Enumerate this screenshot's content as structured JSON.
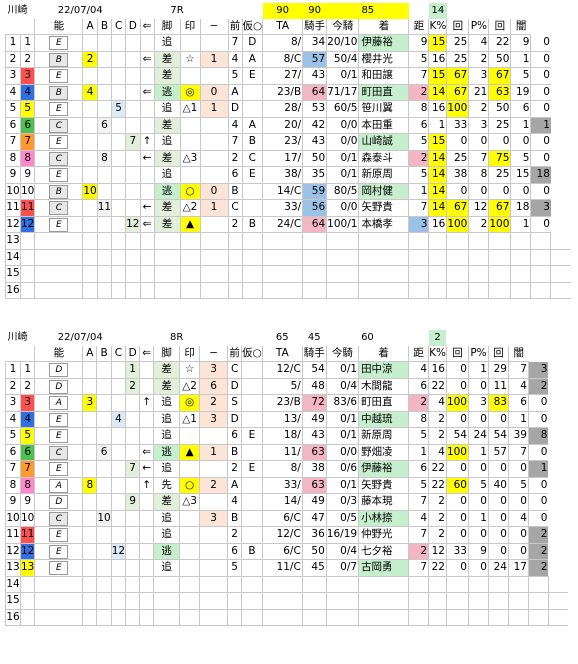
{
  "race7": {
    "track": "川崎",
    "date": "22/07/04",
    "race_no": "7R",
    "top_values": [
      "90",
      "90",
      "85"
    ],
    "dist_top": "14",
    "headers": [
      "能",
      "A",
      "B",
      "C",
      "D",
      "⇐",
      "脚",
      "印",
      "−",
      "前",
      "仮○",
      "TA",
      "騎手",
      "今騎",
      "着",
      "距",
      "K%",
      "回",
      "P%",
      "回",
      "闇"
    ],
    "rows": [
      {
        "n1": "1",
        "n2": "1",
        "rank": "E",
        "a": "",
        "b": "",
        "c": "",
        "d": "",
        "arrow": "",
        "kyaku": "追",
        "mark": "",
        "markno": "",
        "waku": "7",
        "mae": "D",
        "ninki": "8/",
        "ta": "34",
        "kishu": "20/10",
        "ima": "伊藤裕",
        "chaku": "9",
        "kyori": "15",
        "k": "25",
        "k_kai": "4",
        "p": "22",
        "p_kai": "9",
        "yami": "0"
      },
      {
        "n1": "2",
        "n2": "2",
        "rank": "B",
        "a": "2",
        "b": "",
        "c": "",
        "d": "",
        "arrow": "⇐",
        "kyaku": "差",
        "mark": "☆",
        "markno": "1",
        "waku": "4",
        "mae": "A",
        "ninki": "8/C",
        "ta": "57",
        "kishu": "50/4",
        "ima": "櫻井光",
        "chaku": "5",
        "kyori": "16",
        "k": "25",
        "k_kai": "2",
        "p": "50",
        "p_kai": "1",
        "yami": "0"
      },
      {
        "n1": "3",
        "n2": "3",
        "rank": "E",
        "a": "",
        "b": "",
        "c": "",
        "d": "",
        "arrow": "",
        "kyaku": "差",
        "mark": "",
        "markno": "",
        "waku": "5",
        "mae": "E",
        "ninki": "27/",
        "ta": "43",
        "kishu": "0/1",
        "ima": "和田譲",
        "chaku": "7",
        "kyori": "15",
        "k": "67",
        "k_kai": "3",
        "p": "67",
        "p_kai": "5",
        "yami": "0"
      },
      {
        "n1": "4",
        "n2": "4",
        "rank": "B",
        "a": "4",
        "b": "",
        "c": "",
        "d": "",
        "arrow": "⇐",
        "kyaku": "逃",
        "mark": "◎",
        "markno": "0",
        "waku": "A",
        "mae": "",
        "ninki": "23/B",
        "ta": "64",
        "kishu": "71/17",
        "ima": "町田直",
        "chaku": "2",
        "kyori": "14",
        "k": "67",
        "k_kai": "21",
        "p": "63",
        "p_kai": "19",
        "yami": "0"
      },
      {
        "n1": "5",
        "n2": "5",
        "rank": "E",
        "a": "",
        "b": "",
        "c": "5",
        "d": "",
        "arrow": "",
        "kyaku": "追",
        "mark": "△1",
        "markno": "1",
        "waku": "D",
        "mae": "",
        "ninki": "28/",
        "ta": "53",
        "kishu": "60/5",
        "ima": "笹川翼",
        "chaku": "8",
        "kyori": "16",
        "k": "100",
        "k_kai": "2",
        "p": "50",
        "p_kai": "6",
        "yami": "0"
      },
      {
        "n1": "6",
        "n2": "6",
        "rank": "C",
        "a": "",
        "b": "6",
        "c": "",
        "d": "",
        "arrow": "",
        "kyaku": "差",
        "mark": "",
        "markno": "",
        "waku": "4",
        "mae": "A",
        "ninki": "20/",
        "ta": "42",
        "kishu": "0/0",
        "ima": "本田重",
        "chaku": "6",
        "kyori": "1",
        "k": "33",
        "k_kai": "3",
        "p": "25",
        "p_kai": "1",
        "yami": "1"
      },
      {
        "n1": "7",
        "n2": "7",
        "rank": "E",
        "a": "",
        "b": "",
        "c": "",
        "d": "7",
        "arrow": "↑",
        "kyaku": "追",
        "mark": "",
        "markno": "",
        "waku": "7",
        "mae": "B",
        "ninki": "23/",
        "ta": "43",
        "kishu": "0/0",
        "ima": "山崎誠",
        "chaku": "5",
        "kyori": "15",
        "k": "0",
        "k_kai": "0",
        "p": "0",
        "p_kai": "0",
        "yami": "0"
      },
      {
        "n1": "8",
        "n2": "8",
        "rank": "C",
        "a": "",
        "b": "8",
        "c": "",
        "d": "",
        "arrow": "←",
        "kyaku": "差",
        "mark": "△3",
        "markno": "",
        "waku": "2",
        "mae": "C",
        "ninki": "17/",
        "ta": "50",
        "kishu": "0/1",
        "ima": "森泰斗",
        "chaku": "2",
        "kyori": "14",
        "k": "25",
        "k_kai": "7",
        "p": "75",
        "p_kai": "5",
        "yami": "0"
      },
      {
        "n1": "9",
        "n2": "9",
        "rank": "E",
        "a": "",
        "b": "",
        "c": "",
        "d": "",
        "arrow": "",
        "kyaku": "追",
        "mark": "",
        "markno": "",
        "waku": "6",
        "mae": "E",
        "ninki": "38/",
        "ta": "35",
        "kishu": "0/1",
        "ima": "新原周",
        "chaku": "5",
        "kyori": "14",
        "k": "38",
        "k_kai": "8",
        "p": "25",
        "p_kai": "15",
        "yami": "18"
      },
      {
        "n1": "10",
        "n2": "10",
        "rank": "B",
        "a": "10",
        "b": "",
        "c": "",
        "d": "",
        "arrow": "",
        "kyaku": "逃",
        "mark": "○",
        "markno": "0",
        "waku": "B",
        "mae": "",
        "ninki": "14/C",
        "ta": "59",
        "kishu": "80/5",
        "ima": "岡村健",
        "chaku": "1",
        "kyori": "14",
        "k": "0",
        "k_kai": "0",
        "p": "0",
        "p_kai": "0",
        "yami": "0"
      },
      {
        "n1": "11",
        "n2": "11",
        "rank": "C",
        "a": "",
        "b": "11",
        "c": "",
        "d": "",
        "arrow": "←",
        "kyaku": "差",
        "mark": "△2",
        "markno": "1",
        "waku": "C",
        "mae": "",
        "ninki": "33/",
        "ta": "56",
        "kishu": "0/0",
        "ima": "矢野貴",
        "chaku": "7",
        "kyori": "14",
        "k": "67",
        "k_kai": "12",
        "p": "67",
        "p_kai": "18",
        "yami": "3"
      },
      {
        "n1": "12",
        "n2": "12",
        "rank": "E",
        "a": "",
        "b": "",
        "c": "",
        "d": "12",
        "arrow": "⇐",
        "kyaku": "差",
        "mark": "▲",
        "markno": "",
        "waku": "2",
        "mae": "B",
        "ninki": "24/C",
        "ta": "64",
        "kishu": "100/1",
        "ima": "本橋孝",
        "chaku": "3",
        "kyori": "16",
        "k": "100",
        "k_kai": "2",
        "p": "100",
        "p_kai": "1",
        "yami": "0"
      },
      {
        "n1": "13",
        "n2": ""
      },
      {
        "n1": "14",
        "n2": ""
      },
      {
        "n1": "15",
        "n2": ""
      },
      {
        "n1": "16",
        "n2": ""
      }
    ]
  },
  "race8": {
    "track": "川崎",
    "date": "22/07/04",
    "race_no": "8R",
    "top_values": [
      "65",
      "45",
      "60"
    ],
    "dist_top": "2",
    "headers": [
      "能",
      "A",
      "B",
      "C",
      "D",
      "⇐",
      "脚",
      "印",
      "−",
      "前",
      "仮○",
      "TA",
      "騎手",
      "今騎",
      "着",
      "距",
      "K%",
      "回",
      "P%",
      "回",
      "闇"
    ],
    "rows": [
      {
        "n1": "1",
        "n2": "1",
        "rank": "D",
        "a": "",
        "b": "",
        "c": "",
        "d": "1",
        "arrow": "",
        "kyaku": "差",
        "mark": "☆",
        "markno": "3",
        "waku": "C",
        "mae": "",
        "ninki": "12/C",
        "ta": "54",
        "kishu": "0/1",
        "ima": "田中涼",
        "chaku": "4",
        "kyori": "16",
        "k": "0",
        "k_kai": "1",
        "p": "29",
        "p_kai": "7",
        "yami": "3"
      },
      {
        "n1": "2",
        "n2": "2",
        "rank": "D",
        "a": "",
        "b": "",
        "c": "",
        "d": "2",
        "arrow": "",
        "kyaku": "差",
        "mark": "△2",
        "markno": "6",
        "waku": "D",
        "mae": "",
        "ninki": "5/",
        "ta": "48",
        "kishu": "0/4",
        "ima": "木間龍",
        "chaku": "6",
        "kyori": "22",
        "k": "0",
        "k_kai": "0",
        "p": "11",
        "p_kai": "4",
        "yami": "2"
      },
      {
        "n1": "3",
        "n2": "3",
        "rank": "A",
        "a": "3",
        "b": "",
        "c": "",
        "d": "",
        "arrow": "↑",
        "kyaku": "追",
        "mark": "◎",
        "markno": "2",
        "waku": "S",
        "mae": "",
        "ninki": "23/B",
        "ta": "72",
        "kishu": "83/6",
        "ima": "町田直",
        "chaku": "2",
        "kyori": "4",
        "k": "100",
        "k_kai": "3",
        "p": "83",
        "p_kai": "6",
        "yami": "0"
      },
      {
        "n1": "4",
        "n2": "4",
        "rank": "E",
        "a": "",
        "b": "",
        "c": "4",
        "d": "",
        "arrow": "",
        "kyaku": "追",
        "mark": "△1",
        "markno": "3",
        "waku": "D",
        "mae": "",
        "ninki": "13/",
        "ta": "49",
        "kishu": "0/1",
        "ima": "中越琉",
        "chaku": "8",
        "kyori": "2",
        "k": "0",
        "k_kai": "0",
        "p": "0",
        "p_kai": "1",
        "yami": "0"
      },
      {
        "n1": "5",
        "n2": "5",
        "rank": "E",
        "a": "",
        "b": "",
        "c": "",
        "d": "",
        "arrow": "",
        "kyaku": "追",
        "mark": "",
        "markno": "",
        "waku": "6",
        "mae": "E",
        "ninki": "18/",
        "ta": "43",
        "kishu": "0/1",
        "ima": "新原周",
        "chaku": "5",
        "kyori": "2",
        "k": "54",
        "k_kai": "24",
        "p": "54",
        "p_kai": "39",
        "yami": "8"
      },
      {
        "n1": "6",
        "n2": "6",
        "rank": "C",
        "a": "",
        "b": "6",
        "c": "",
        "d": "",
        "arrow": "⇐",
        "kyaku": "逃",
        "mark": "▲",
        "markno": "1",
        "waku": "B",
        "mae": "",
        "ninki": "11/",
        "ta": "63",
        "kishu": "0/0",
        "ima": "野畑凌",
        "chaku": "1",
        "kyori": "4",
        "k": "100",
        "k_kai": "1",
        "p": "57",
        "p_kai": "7",
        "yami": "0"
      },
      {
        "n1": "7",
        "n2": "7",
        "rank": "E",
        "a": "",
        "b": "",
        "c": "",
        "d": "7",
        "arrow": "←",
        "kyaku": "追",
        "mark": "",
        "markno": "",
        "waku": "2",
        "mae": "E",
        "ninki": "8/",
        "ta": "38",
        "kishu": "0/6",
        "ima": "伊藤裕",
        "chaku": "6",
        "kyori": "22",
        "k": "0",
        "k_kai": "0",
        "p": "0",
        "p_kai": "0",
        "yami": "1"
      },
      {
        "n1": "8",
        "n2": "8",
        "rank": "A",
        "a": "8",
        "b": "",
        "c": "",
        "d": "",
        "arrow": "↑",
        "kyaku": "先",
        "mark": "○",
        "markno": "2",
        "waku": "A",
        "mae": "",
        "ninki": "33/",
        "ta": "63",
        "kishu": "0/1",
        "ima": "矢野貴",
        "chaku": "5",
        "kyori": "22",
        "k": "60",
        "k_kai": "5",
        "p": "40",
        "p_kai": "5",
        "yami": "0"
      },
      {
        "n1": "9",
        "n2": "9",
        "rank": "D",
        "a": "",
        "b": "",
        "c": "",
        "d": "9",
        "arrow": "",
        "kyaku": "差",
        "mark": "△3",
        "markno": "",
        "waku": "4",
        "mae": "",
        "ninki": "14/",
        "ta": "49",
        "kishu": "0/3",
        "ima": "藤本現",
        "chaku": "7",
        "kyori": "2",
        "k": "0",
        "k_kai": "0",
        "p": "0",
        "p_kai": "0",
        "yami": "0"
      },
      {
        "n1": "10",
        "n2": "10",
        "rank": "C",
        "a": "",
        "b": "10",
        "c": "",
        "d": "",
        "arrow": "",
        "kyaku": "追",
        "mark": "",
        "markno": "3",
        "waku": "B",
        "mae": "",
        "ninki": "6/C",
        "ta": "47",
        "kishu": "0/5",
        "ima": "小林捺",
        "chaku": "4",
        "kyori": "2",
        "k": "0",
        "k_kai": "1",
        "p": "0",
        "p_kai": "4",
        "yami": "0"
      },
      {
        "n1": "11",
        "n2": "11",
        "rank": "E",
        "a": "",
        "b": "",
        "c": "",
        "d": "",
        "arrow": "",
        "kyaku": "追",
        "mark": "",
        "markno": "",
        "waku": "2",
        "mae": "",
        "ninki": "12/C",
        "ta": "36",
        "kishu": "16/19",
        "ima": "仲野光",
        "chaku": "7",
        "kyori": "2",
        "k": "0",
        "k_kai": "0",
        "p": "0",
        "p_kai": "0",
        "yami": "2"
      },
      {
        "n1": "12",
        "n2": "12",
        "rank": "E",
        "a": "",
        "b": "",
        "c": "12",
        "d": "",
        "arrow": "",
        "kyaku": "逃",
        "mark": "",
        "markno": "",
        "waku": "6",
        "mae": "B",
        "ninki": "6/C",
        "ta": "50",
        "kishu": "0/4",
        "ima": "七夕裕",
        "chaku": "2",
        "kyori": "12",
        "k": "33",
        "k_kai": "9",
        "p": "0",
        "p_kai": "0",
        "yami": "2"
      },
      {
        "n1": "13",
        "n2": "13",
        "rank": "E",
        "a": "",
        "b": "",
        "c": "",
        "d": "",
        "arrow": "",
        "kyaku": "追",
        "mark": "",
        "markno": "",
        "waku": "5",
        "mae": "",
        "ninki": "11/C",
        "ta": "45",
        "kishu": "0/7",
        "ima": "古岡勇",
        "chaku": "7",
        "kyori": "22",
        "k": "0",
        "k_kai": "0",
        "p": "24",
        "p_kai": "17",
        "yami": "2"
      },
      {
        "n1": "14",
        "n2": ""
      },
      {
        "n1": "15",
        "n2": ""
      },
      {
        "n1": "16",
        "n2": ""
      }
    ]
  },
  "colors": {
    "frame_colors": [
      "#ffffff",
      "#ffffff",
      "#ff5050",
      "#3070e0",
      "#ffff00",
      "#50c050",
      "#ff9a30",
      "#ff88cc"
    ],
    "yellow": "#ffff00",
    "blue": "#9bc2e6",
    "pink": "#f4b6c2",
    "green": "#c6efce",
    "orange": "#fce4d6",
    "gray": "#808080"
  }
}
